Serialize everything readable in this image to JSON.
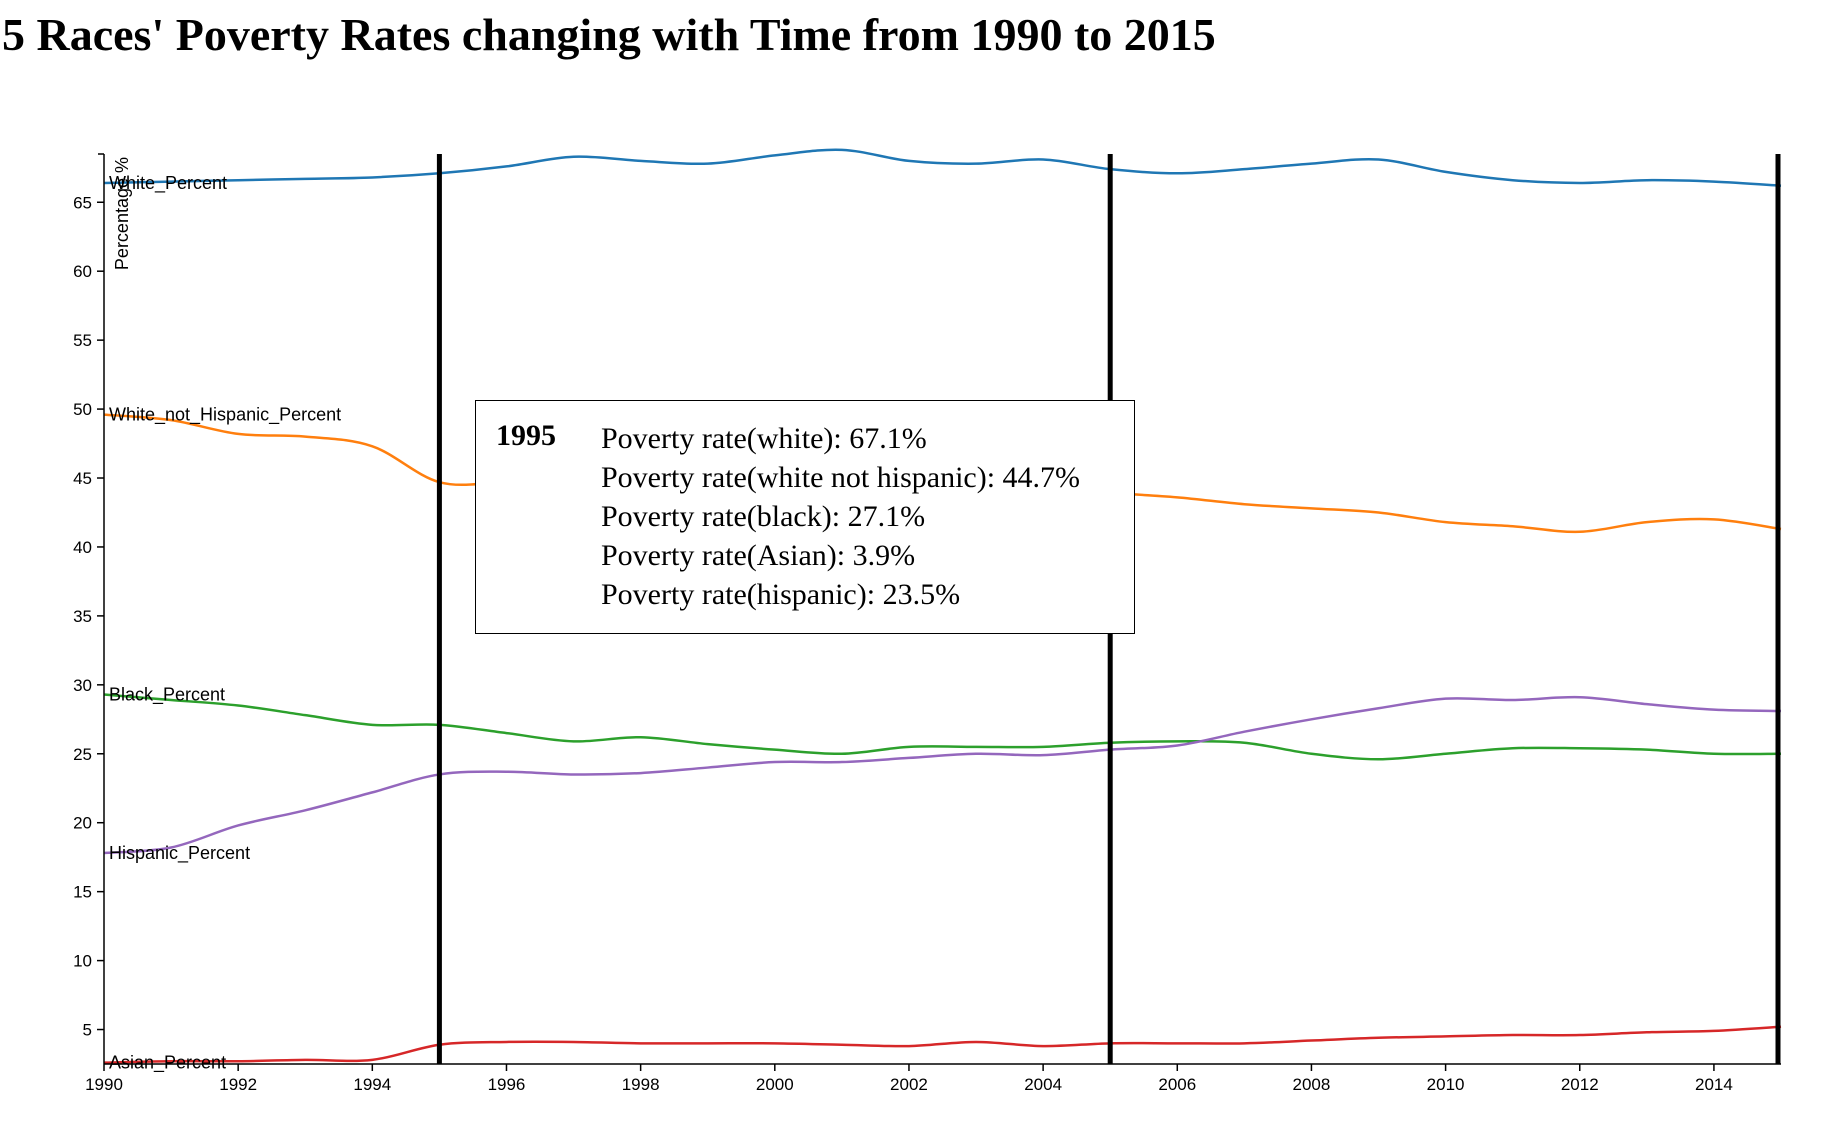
{
  "chart_data": {
    "type": "line",
    "title": "5 Races' Poverty Rates changing with Time from 1990 to 2015",
    "xlabel": "",
    "ylabel": "Percentage %",
    "xlim": [
      1990,
      2015
    ],
    "ylim": [
      2.5,
      68.5
    ],
    "x_ticks": [
      1990,
      1992,
      1994,
      1996,
      1998,
      2000,
      2002,
      2004,
      2006,
      2008,
      2010,
      2012,
      2014
    ],
    "y_ticks": [
      5,
      10,
      15,
      20,
      25,
      30,
      35,
      40,
      45,
      50,
      55,
      60,
      65
    ],
    "grid": false,
    "x": [
      1990,
      1991,
      1992,
      1993,
      1994,
      1995,
      1996,
      1997,
      1998,
      1999,
      2000,
      2001,
      2002,
      2003,
      2004,
      2005,
      2006,
      2007,
      2008,
      2009,
      2010,
      2011,
      2012,
      2013,
      2014,
      2015
    ],
    "series": [
      {
        "name": "White_Percent",
        "color": "#1f77b4",
        "values": [
          66.4,
          66.5,
          66.6,
          66.7,
          66.8,
          67.1,
          67.6,
          68.3,
          68.0,
          67.8,
          68.4,
          68.8,
          68.0,
          67.8,
          68.1,
          67.4,
          67.1,
          67.4,
          67.8,
          68.1,
          67.2,
          66.6,
          66.4,
          66.6,
          66.5,
          66.2
        ]
      },
      {
        "name": "White_not_Hispanic_Percent",
        "color": "#ff7f0e",
        "values": [
          49.6,
          49.2,
          48.2,
          48.0,
          47.3,
          44.7,
          44.7,
          44.7,
          44.7,
          44.6,
          44.5,
          44.4,
          44.3,
          44.2,
          44.1,
          43.9,
          43.6,
          43.1,
          42.8,
          42.5,
          41.8,
          41.5,
          41.1,
          41.8,
          42.0,
          41.3
        ]
      },
      {
        "name": "Black_Percent",
        "color": "#2ca02c",
        "values": [
          29.3,
          28.9,
          28.5,
          27.8,
          27.1,
          27.1,
          26.5,
          25.9,
          26.2,
          25.7,
          25.3,
          25.0,
          25.5,
          25.5,
          25.5,
          25.8,
          25.9,
          25.8,
          25.0,
          24.6,
          25.0,
          25.4,
          25.4,
          25.3,
          25.0,
          25.0
        ]
      },
      {
        "name": "Hispanic_Percent",
        "color": "#9467bd",
        "values": [
          17.8,
          18.2,
          19.8,
          20.9,
          22.2,
          23.5,
          23.7,
          23.5,
          23.6,
          24.0,
          24.4,
          24.4,
          24.7,
          25.0,
          24.9,
          25.3,
          25.6,
          26.6,
          27.5,
          28.3,
          29.0,
          28.9,
          29.1,
          28.6,
          28.2,
          28.1
        ]
      },
      {
        "name": "Asian_Percent",
        "color": "#d62728",
        "values": [
          2.6,
          2.7,
          2.7,
          2.8,
          2.8,
          3.9,
          4.1,
          4.1,
          4.0,
          4.0,
          4.0,
          3.9,
          3.8,
          4.1,
          3.8,
          4.0,
          4.0,
          4.0,
          4.2,
          4.4,
          4.5,
          4.6,
          4.6,
          4.8,
          4.9,
          5.2
        ]
      }
    ],
    "year_markers": [
      1995,
      2005,
      2015
    ]
  },
  "tooltip": {
    "year": "1995",
    "lines": [
      "Poverty rate(white): 67.1%",
      "Poverty rate(white not hispanic): 44.7%",
      "Poverty rate(black): 27.1%",
      "Poverty rate(Asian): 3.9%",
      "Poverty rate(hispanic): 23.5%"
    ]
  }
}
